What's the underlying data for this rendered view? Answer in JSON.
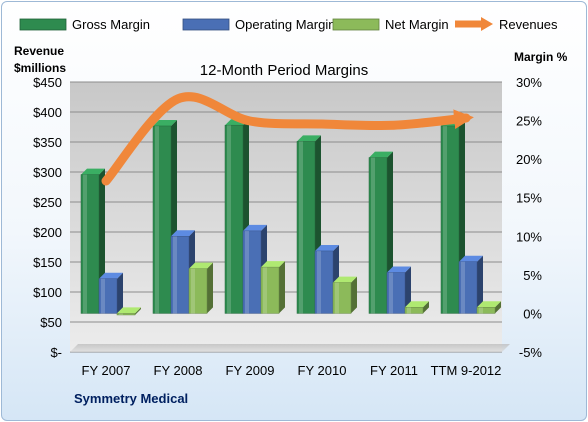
{
  "chart_data": {
    "type": "bar",
    "title": "12-Month Period Margins",
    "y_left_title": [
      "Revenue",
      "$millions"
    ],
    "y_right_title": "Margin %",
    "categories": [
      "FY 2007",
      "FY 2008",
      "FY 2009",
      "FY 2010",
      "FY 2011",
      "TTM 9-2012"
    ],
    "left_axis": {
      "min": 0,
      "max": 450,
      "step": 50,
      "ticks": [
        "$-",
        "$50",
        "$100",
        "$150",
        "$200",
        "$250",
        "$300",
        "$350",
        "$400",
        "$450"
      ]
    },
    "right_axis": {
      "min": -5,
      "max": 30,
      "step": 5,
      "ticks": [
        "-5%",
        "0%",
        "5%",
        "10%",
        "15%",
        "20%",
        "25%",
        "30%"
      ]
    },
    "series": [
      {
        "name": "Gross Margin",
        "kind": "bar",
        "axis": "right",
        "color": "#2e8b4f",
        "values": [
          18.0,
          24.3,
          24.4,
          22.3,
          20.2,
          24.3
        ]
      },
      {
        "name": "Operating Margin",
        "kind": "bar",
        "axis": "right",
        "color": "#4a6fb5",
        "values": [
          4.5,
          10.0,
          10.7,
          8.1,
          5.3,
          6.7
        ]
      },
      {
        "name": "Net Margin",
        "kind": "bar",
        "axis": "right",
        "color": "#8cba5a",
        "values": [
          -0.2,
          5.8,
          6.0,
          4.0,
          0.8,
          0.8
        ]
      },
      {
        "name": "Revenues",
        "kind": "line",
        "axis": "left",
        "color": "#f0873a",
        "values": [
          285,
          422,
          385,
          380,
          378,
          390
        ]
      }
    ],
    "grid": true,
    "legend_position": "top"
  },
  "footer": "Symmetry Medical"
}
